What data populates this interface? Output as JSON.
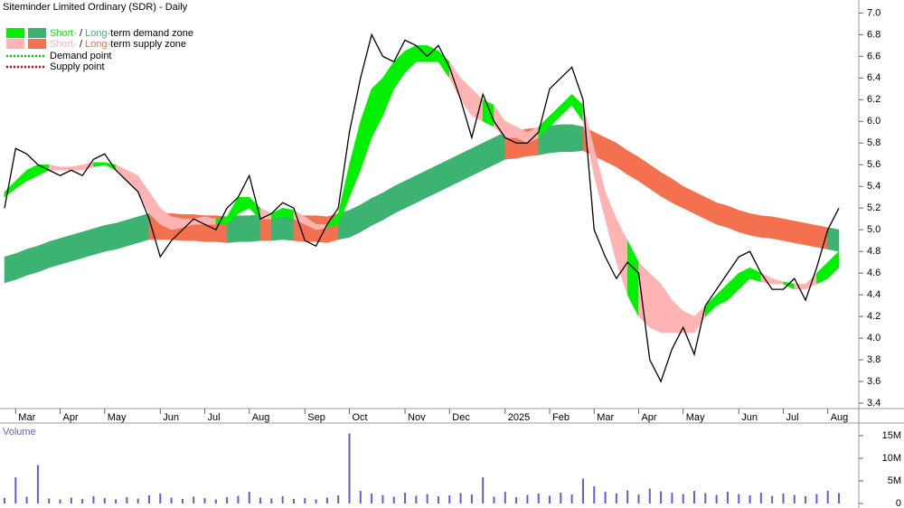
{
  "chart_data": [
    {
      "type": "line",
      "title": "Siteminder Limited Ordinary (SDR) - Daily",
      "categories": [
        null,
        "Mar",
        null,
        null,
        null,
        "Apr",
        null,
        null,
        null,
        "May",
        null,
        null,
        null,
        null,
        "Jun",
        null,
        null,
        null,
        "Jul",
        null,
        null,
        null,
        "Aug",
        null,
        null,
        null,
        null,
        "Sep",
        null,
        null,
        null,
        "Oct",
        null,
        null,
        null,
        null,
        "Nov",
        null,
        null,
        null,
        "Dec",
        null,
        null,
        null,
        null,
        "2025",
        null,
        null,
        null,
        "Feb",
        null,
        null,
        null,
        "Mar",
        null,
        null,
        null,
        "Apr",
        null,
        null,
        null,
        "May",
        null,
        null,
        null,
        null,
        "Jun",
        null,
        null,
        null,
        "Jul",
        null,
        null,
        null,
        "Aug",
        null
      ],
      "values": [
        5.2,
        5.75,
        5.7,
        5.6,
        5.55,
        5.5,
        5.55,
        5.5,
        5.65,
        5.7,
        5.55,
        5.45,
        5.35,
        5.1,
        4.75,
        4.9,
        5.0,
        5.1,
        5.05,
        5.0,
        5.2,
        5.3,
        5.5,
        5.1,
        5.15,
        5.25,
        5.2,
        4.9,
        4.85,
        5.05,
        5.2,
        5.9,
        6.4,
        6.8,
        6.6,
        6.55,
        6.75,
        6.7,
        6.6,
        6.7,
        6.5,
        6.2,
        5.85,
        6.25,
        6.0,
        5.85,
        5.8,
        5.8,
        5.9,
        6.3,
        6.4,
        6.5,
        6.2,
        5.0,
        4.75,
        4.55,
        4.7,
        4.6,
        3.8,
        3.6,
        3.9,
        4.1,
        3.85,
        4.3,
        4.45,
        4.6,
        4.75,
        4.8,
        4.6,
        4.45,
        4.45,
        4.55,
        4.35,
        4.65,
        5.0,
        5.2
      ],
      "color": "#000000",
      "zones": {
        "short": {
          "upper": [
            5.35,
            5.45,
            5.55,
            5.6,
            5.6,
            5.58,
            5.58,
            5.6,
            5.62,
            5.62,
            5.6,
            5.55,
            5.5,
            5.35,
            5.2,
            5.12,
            5.1,
            5.1,
            5.12,
            5.1,
            5.12,
            5.3,
            5.3,
            5.2,
            5.15,
            5.2,
            5.18,
            5.12,
            5.05,
            5.05,
            5.15,
            5.6,
            6.0,
            6.3,
            6.4,
            6.55,
            6.65,
            6.7,
            6.7,
            6.65,
            6.55,
            6.4,
            6.3,
            6.2,
            6.15,
            6.0,
            5.95,
            5.9,
            5.95,
            6.05,
            6.15,
            6.25,
            6.15,
            5.75,
            5.35,
            5.1,
            4.9,
            4.7,
            4.6,
            4.5,
            4.35,
            4.25,
            4.2,
            4.3,
            4.4,
            4.5,
            4.6,
            4.65,
            4.6,
            4.55,
            4.52,
            4.5,
            4.5,
            4.6,
            4.7,
            4.8
          ],
          "lower": [
            5.3,
            5.38,
            5.45,
            5.5,
            5.55,
            5.55,
            5.55,
            5.55,
            5.58,
            5.6,
            5.55,
            5.45,
            5.35,
            5.15,
            5.05,
            5.0,
            5.02,
            5.05,
            5.05,
            5.05,
            5.05,
            5.15,
            5.2,
            5.1,
            5.1,
            5.12,
            5.1,
            5.05,
            5.0,
            5.02,
            5.05,
            5.3,
            5.55,
            5.85,
            6.05,
            6.3,
            6.45,
            6.55,
            6.55,
            6.55,
            6.4,
            6.2,
            6.05,
            6.0,
            5.95,
            5.85,
            5.85,
            5.8,
            5.85,
            5.95,
            6.05,
            6.15,
            6.0,
            5.5,
            5.1,
            4.7,
            4.4,
            4.2,
            4.1,
            4.05,
            4.05,
            4.05,
            4.05,
            4.2,
            4.3,
            4.35,
            4.45,
            4.55,
            4.52,
            4.5,
            4.5,
            4.45,
            4.45,
            4.5,
            4.55,
            4.65
          ]
        },
        "long": {
          "upper": [
            4.75,
            4.78,
            4.82,
            4.85,
            4.89,
            4.92,
            4.95,
            4.98,
            5.01,
            5.04,
            5.06,
            5.09,
            5.12,
            5.15,
            5.15,
            5.15,
            5.14,
            5.14,
            5.13,
            5.13,
            5.12,
            5.13,
            5.13,
            5.14,
            5.14,
            5.15,
            5.14,
            5.13,
            5.13,
            5.12,
            5.15,
            5.18,
            5.23,
            5.29,
            5.34,
            5.4,
            5.45,
            5.5,
            5.55,
            5.6,
            5.65,
            5.7,
            5.75,
            5.8,
            5.85,
            5.9,
            5.91,
            5.93,
            5.94,
            5.96,
            5.97,
            5.97,
            5.95,
            5.9,
            5.85,
            5.8,
            5.73,
            5.67,
            5.6,
            5.53,
            5.47,
            5.4,
            5.35,
            5.3,
            5.25,
            5.22,
            5.18,
            5.15,
            5.13,
            5.12,
            5.1,
            5.08,
            5.06,
            5.04,
            5.02,
            5.0
          ],
          "lower": [
            4.51,
            4.54,
            4.58,
            4.61,
            4.65,
            4.68,
            4.71,
            4.74,
            4.77,
            4.8,
            4.82,
            4.85,
            4.88,
            4.91,
            4.91,
            4.91,
            4.9,
            4.9,
            4.89,
            4.89,
            4.88,
            4.89,
            4.89,
            4.9,
            4.9,
            4.91,
            4.9,
            4.89,
            4.89,
            4.88,
            4.91,
            4.93,
            4.98,
            5.04,
            5.09,
            5.15,
            5.2,
            5.25,
            5.3,
            5.35,
            5.4,
            5.45,
            5.5,
            5.55,
            5.6,
            5.65,
            5.66,
            5.68,
            5.69,
            5.71,
            5.72,
            5.72,
            5.73,
            5.68,
            5.63,
            5.58,
            5.51,
            5.45,
            5.38,
            5.31,
            5.25,
            5.2,
            5.15,
            5.1,
            5.05,
            5.02,
            4.98,
            4.95,
            4.93,
            4.92,
            4.9,
            4.88,
            4.86,
            4.84,
            4.82,
            4.8
          ]
        }
      },
      "zone_colors": {
        "demand": {
          "short": "#00f000",
          "long": "#3cb371"
        },
        "supply": {
          "short": "#ffb4b4",
          "long": "#f4714f"
        }
      },
      "legend": {
        "demand": {
          "short": "Short-",
          "separator": " / ",
          "long": "Long-",
          "text": "term demand zone"
        },
        "supply": {
          "short": "Short-",
          "separator": " / ",
          "long": "Long-",
          "text": "term supply zone"
        },
        "points": [
          {
            "label": "Demand point",
            "color": "#00cc00"
          },
          {
            "label": "Supply point",
            "color": "#dd0000"
          }
        ]
      },
      "ylim": [
        3.35,
        7.12
      ],
      "yticks": [
        3.4,
        3.6,
        3.8,
        {
          "value": 4,
          "label": "4.0"
        },
        4.2,
        4.4,
        4.6,
        4.8,
        {
          "value": 5,
          "label": "5.0"
        },
        5.2,
        5.4,
        5.6,
        5.8,
        {
          "value": 6,
          "label": "6.0"
        },
        6.2,
        6.4,
        6.6,
        6.8,
        {
          "value": 7,
          "label": "7.0"
        }
      ]
    },
    {
      "type": "bar",
      "title": "Volume",
      "color": "#6a5acd",
      "values": [
        1200000,
        5800000,
        1500000,
        8500000,
        1100000,
        900000,
        1300000,
        1000000,
        1600000,
        1200000,
        900000,
        1400000,
        1100000,
        1800000,
        2200000,
        1300000,
        1000000,
        1500000,
        1200000,
        900000,
        1400000,
        1700000,
        2600000,
        1300000,
        1100000,
        1600000,
        1000000,
        1200000,
        900000,
        1300000,
        1800000,
        15500000,
        2800000,
        2200000,
        1900000,
        1500000,
        2400000,
        1700000,
        2100000,
        1600000,
        1800000,
        2300000,
        2000000,
        5800000,
        1500000,
        2600000,
        1400000,
        1900000,
        2200000,
        1700000,
        2400000,
        2000000,
        5500000,
        3800000,
        2600000,
        2200000,
        2900000,
        2000000,
        3300000,
        2700000,
        2400000,
        2100000,
        2800000,
        2300000,
        1900000,
        2600000,
        2100000,
        1800000,
        2400000,
        1700000,
        2200000,
        1900000,
        1600000,
        2100000,
        2800000,
        2300000
      ],
      "ylim": [
        0,
        18000000
      ],
      "yticks": [
        0,
        {
          "value": 5000000,
          "label": "5M"
        },
        {
          "value": 10000000,
          "label": "10M"
        },
        {
          "value": 15000000,
          "label": "15M"
        }
      ]
    }
  ]
}
